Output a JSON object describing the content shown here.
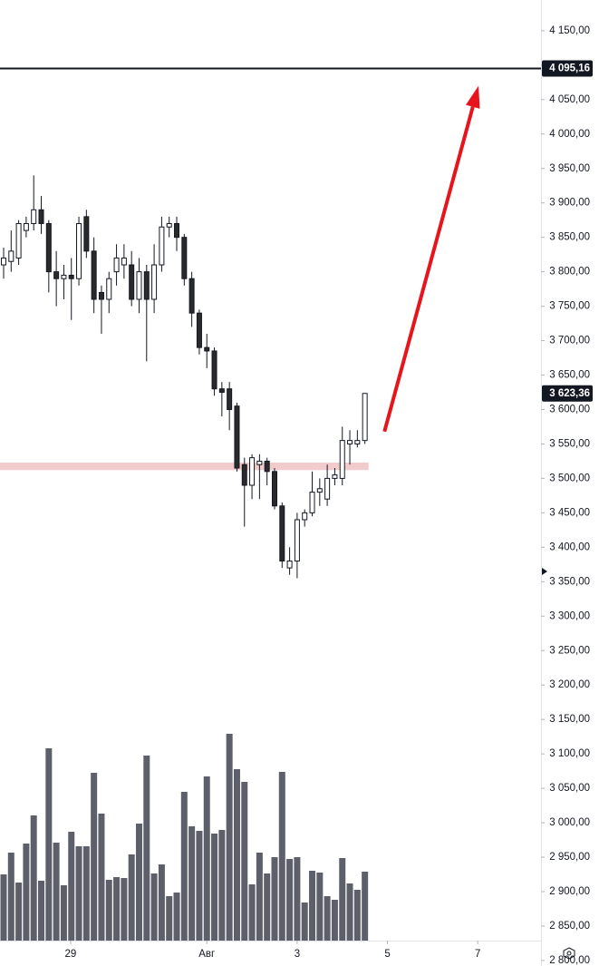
{
  "chart_data": {
    "type": "candlestick",
    "x": [
      0,
      1,
      2,
      3,
      4,
      5,
      6,
      7,
      8,
      9,
      10,
      11,
      12,
      13,
      14,
      15,
      16,
      17,
      18,
      19,
      20,
      21,
      22,
      23,
      24,
      25,
      26,
      27,
      28,
      29,
      30,
      31,
      32,
      33,
      34,
      35,
      36,
      37,
      38,
      39,
      40,
      41,
      42,
      43,
      44,
      45,
      46,
      47,
      48
    ],
    "open": [
      3810,
      3815,
      3820,
      3860,
      3870,
      3890,
      3870,
      3800,
      3790,
      3795,
      3790,
      3880,
      3830,
      3770,
      3760,
      3800,
      3810,
      3810,
      3760,
      3800,
      3760,
      3810,
      3865,
      3870,
      3850,
      3790,
      3740,
      3690,
      3685,
      3630,
      3630,
      3605,
      3520,
      3490,
      3520,
      3525,
      3510,
      3460,
      3370,
      3380,
      3440,
      3450,
      3480,
      3470,
      3500,
      3500,
      3550,
      3550,
      3555
    ],
    "high": [
      3835,
      3860,
      3875,
      3880,
      3940,
      3910,
      3875,
      3830,
      3810,
      3820,
      3880,
      3890,
      3850,
      3780,
      3800,
      3840,
      3840,
      3830,
      3820,
      3810,
      3840,
      3880,
      3880,
      3880,
      3855,
      3800,
      3745,
      3710,
      3690,
      3640,
      3640,
      3610,
      3530,
      3535,
      3535,
      3530,
      3515,
      3465,
      3400,
      3450,
      3455,
      3510,
      3500,
      3520,
      3515,
      3575,
      3570,
      3570,
      3623.36
    ],
    "low": [
      3790,
      3800,
      3810,
      3850,
      3860,
      3855,
      3770,
      3750,
      3760,
      3730,
      3780,
      3820,
      3740,
      3710,
      3740,
      3780,
      3790,
      3750,
      3740,
      3670,
      3740,
      3800,
      3850,
      3830,
      3780,
      3720,
      3680,
      3660,
      3620,
      3590,
      3570,
      3510,
      3430,
      3470,
      3470,
      3490,
      3455,
      3370,
      3360,
      3355,
      3430,
      3445,
      3460,
      3460,
      3490,
      3490,
      3520,
      3545,
      3550
    ],
    "close": [
      3820,
      3830,
      3870,
      3870,
      3890,
      3870,
      3800,
      3790,
      3795,
      3790,
      3870,
      3830,
      3760,
      3760,
      3790,
      3820,
      3820,
      3760,
      3800,
      3760,
      3810,
      3865,
      3870,
      3850,
      3790,
      3740,
      3690,
      3685,
      3630,
      3625,
      3600,
      3515,
      3490,
      3530,
      3525,
      3510,
      3460,
      3380,
      3380,
      3440,
      3450,
      3480,
      3485,
      3500,
      3505,
      3555,
      3555,
      3555,
      3623.36
    ],
    "volume": [
      73,
      97,
      64,
      107,
      138,
      66,
      212,
      108,
      61,
      120,
      104,
      104,
      185,
      140,
      67,
      70,
      69,
      95,
      129,
      204,
      74,
      84,
      49,
      53,
      164,
      126,
      121,
      181,
      118,
      122,
      228,
      189,
      175,
      62,
      97,
      74,
      92,
      186,
      90,
      92,
      42,
      77,
      75,
      49,
      45,
      91,
      63,
      56,
      76
    ],
    "ylim": [
      2792,
      4194.6
    ],
    "xlim": [
      -0.48,
      71.4
    ],
    "yticks": [
      {
        "value": 2800,
        "label": "2 800,00"
      },
      {
        "value": 2850,
        "label": "2 850,00"
      },
      {
        "value": 2900,
        "label": "2 900,00"
      },
      {
        "value": 2950,
        "label": "2 950,00"
      },
      {
        "value": 3000,
        "label": "3 000,00"
      },
      {
        "value": 3050,
        "label": "3 050,00"
      },
      {
        "value": 3100,
        "label": "3 100,00"
      },
      {
        "value": 3150,
        "label": "3 150,00"
      },
      {
        "value": 3200,
        "label": "3 200,00"
      },
      {
        "value": 3250,
        "label": "3 250,00"
      },
      {
        "value": 3300,
        "label": "3 300,00"
      },
      {
        "value": 3350,
        "label": "3 350,00"
      },
      {
        "value": 3400,
        "label": "3 400,00"
      },
      {
        "value": 3450,
        "label": "3 450,00"
      },
      {
        "value": 3500,
        "label": "3 500,00"
      },
      {
        "value": 3550,
        "label": "3 550,00"
      },
      {
        "value": 3600,
        "label": "3 600,00"
      },
      {
        "value": 3650,
        "label": "3 650,00"
      },
      {
        "value": 3700,
        "label": "3 700,00"
      },
      {
        "value": 3750,
        "label": "3 750,00"
      },
      {
        "value": 3800,
        "label": "3 800,00"
      },
      {
        "value": 3850,
        "label": "3 850,00"
      },
      {
        "value": 3900,
        "label": "3 900,00"
      },
      {
        "value": 3950,
        "label": "3 950,00"
      },
      {
        "value": 4000,
        "label": "4 000,00"
      },
      {
        "value": 4050,
        "label": "4 050,00"
      },
      {
        "value": 4100,
        "label": "4 100,00"
      },
      {
        "value": 4150,
        "label": "4 150,00"
      }
    ],
    "xticks": [
      {
        "value": 8.9,
        "label": "29"
      },
      {
        "value": 27,
        "label": "Авг"
      },
      {
        "value": 39,
        "label": "3"
      },
      {
        "value": 51,
        "label": "5"
      },
      {
        "value": 63,
        "label": "7"
      }
    ],
    "hline": {
      "value": 4095.16,
      "label": "4 095,16"
    },
    "last_price": {
      "value": 3623.36,
      "label": "3 623,36"
    },
    "zone": [
      3512,
      3523
    ],
    "arrow": {
      "x": [
        50.6,
        63.1
      ],
      "y": [
        3568,
        4070
      ],
      "color": "#e8141c"
    },
    "up_color": "#ffffff",
    "down_color": "#2a2a2a",
    "volume_color": "#5d606b"
  }
}
